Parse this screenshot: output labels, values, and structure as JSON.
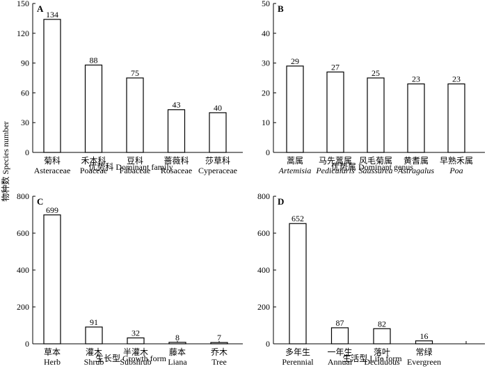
{
  "ylabel": "物种数 Species number",
  "chart_data": [
    {
      "type": "bar",
      "panel": "A",
      "title": "",
      "xlabel": "优势科 Dominant family",
      "ylim": [
        0,
        150
      ],
      "yticks": [
        0,
        30,
        60,
        90,
        120,
        150
      ],
      "categories": [
        {
          "zh": "菊科",
          "en": "Asteraceae",
          "italic": false
        },
        {
          "zh": "禾本科",
          "en": "Poaceae",
          "italic": false
        },
        {
          "zh": "豆科",
          "en": "Fabaceae",
          "italic": false
        },
        {
          "zh": "蔷薇科",
          "en": "Rosaceae",
          "italic": false
        },
        {
          "zh": "莎草科",
          "en": "Cyperaceae",
          "italic": false
        }
      ],
      "values": [
        134,
        88,
        75,
        43,
        40
      ]
    },
    {
      "type": "bar",
      "panel": "B",
      "title": "",
      "xlabel": "优势属 Dominant genus",
      "ylim": [
        0,
        50
      ],
      "yticks": [
        0,
        10,
        20,
        30,
        40,
        50
      ],
      "categories": [
        {
          "zh": "蒿属",
          "en": "Artemisia",
          "italic": true
        },
        {
          "zh": "马先蒿属",
          "en": "Pedicularis",
          "italic": true
        },
        {
          "zh": "风毛菊属",
          "en": "Saussurea",
          "italic": true
        },
        {
          "zh": "黄耆属",
          "en": "Astragalus",
          "italic": true
        },
        {
          "zh": "早熟禾属",
          "en": "Poa",
          "italic": true
        }
      ],
      "values": [
        29,
        27,
        25,
        23,
        23
      ]
    },
    {
      "type": "bar",
      "panel": "C",
      "title": "",
      "xlabel": "生长型 Growth form",
      "ylim": [
        0,
        800
      ],
      "yticks": [
        0,
        200,
        400,
        600,
        800
      ],
      "categories": [
        {
          "zh": "草本",
          "en": "Herb",
          "italic": false
        },
        {
          "zh": "灌木",
          "en": "Shrub",
          "italic": false
        },
        {
          "zh": "半灌木",
          "en": "Subshrub",
          "italic": false
        },
        {
          "zh": "藤本",
          "en": "Liana",
          "italic": false
        },
        {
          "zh": "乔木",
          "en": "Tree",
          "italic": false
        }
      ],
      "values": [
        699,
        91,
        32,
        8,
        7
      ]
    },
    {
      "type": "bar",
      "panel": "D",
      "title": "",
      "xlabel": "生活型 Life form",
      "ylim": [
        0,
        800
      ],
      "yticks": [
        0,
        200,
        400,
        600,
        800
      ],
      "categories": [
        {
          "zh": "多年生",
          "en": "Perennial",
          "italic": false
        },
        {
          "zh": "一年生",
          "en": "Annual",
          "italic": false
        },
        {
          "zh": "落叶",
          "en": "Deciduous",
          "italic": false
        },
        {
          "zh": "常绿",
          "en": "Evergreen",
          "italic": false
        },
        {
          "zh": "",
          "en": "",
          "italic": false
        }
      ],
      "values": [
        652,
        87,
        82,
        16,
        null
      ]
    }
  ]
}
